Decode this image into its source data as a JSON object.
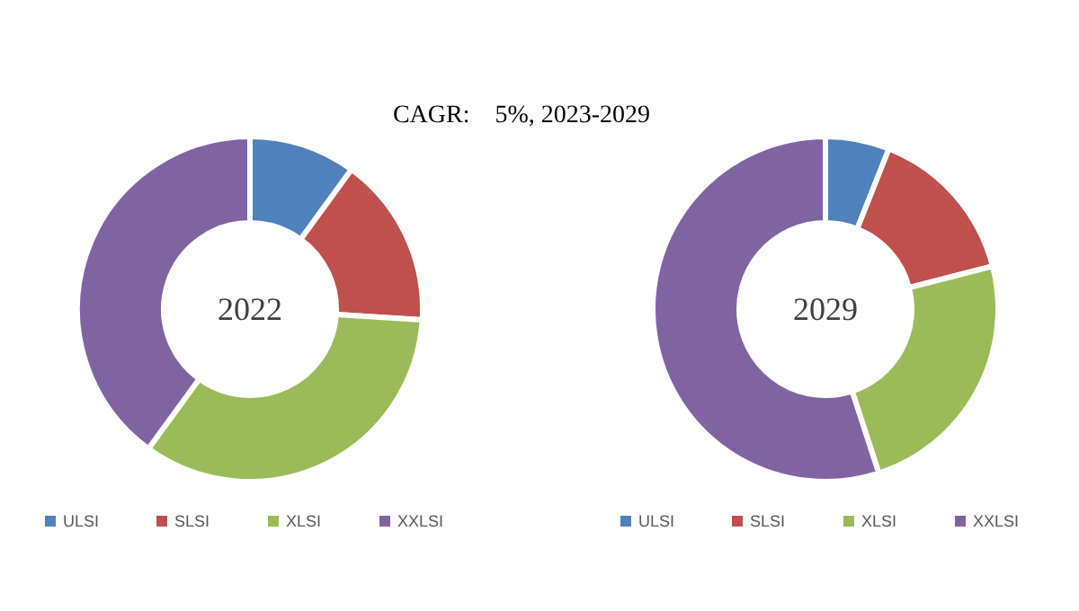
{
  "chart_data": [
    {
      "type": "other",
      "title": "CAGR:    5%, 2023-2029"
    },
    {
      "type": "donut",
      "title": "2022",
      "categories": [
        "ULSI",
        "SLSI",
        "XLSI",
        "XXLSI"
      ],
      "values": [
        10,
        16,
        34,
        40
      ],
      "colors": [
        "#4f81bd",
        "#c0504d",
        "#9bbb59",
        "#8064a2"
      ],
      "legend": "bottom"
    },
    {
      "type": "donut",
      "title": "2029",
      "categories": [
        "ULSI",
        "SLSI",
        "XLSI",
        "XXLSI"
      ],
      "values": [
        6,
        15,
        24,
        55
      ],
      "colors": [
        "#4f81bd",
        "#c0504d",
        "#9bbb59",
        "#8064a2"
      ],
      "legend": "bottom"
    }
  ]
}
